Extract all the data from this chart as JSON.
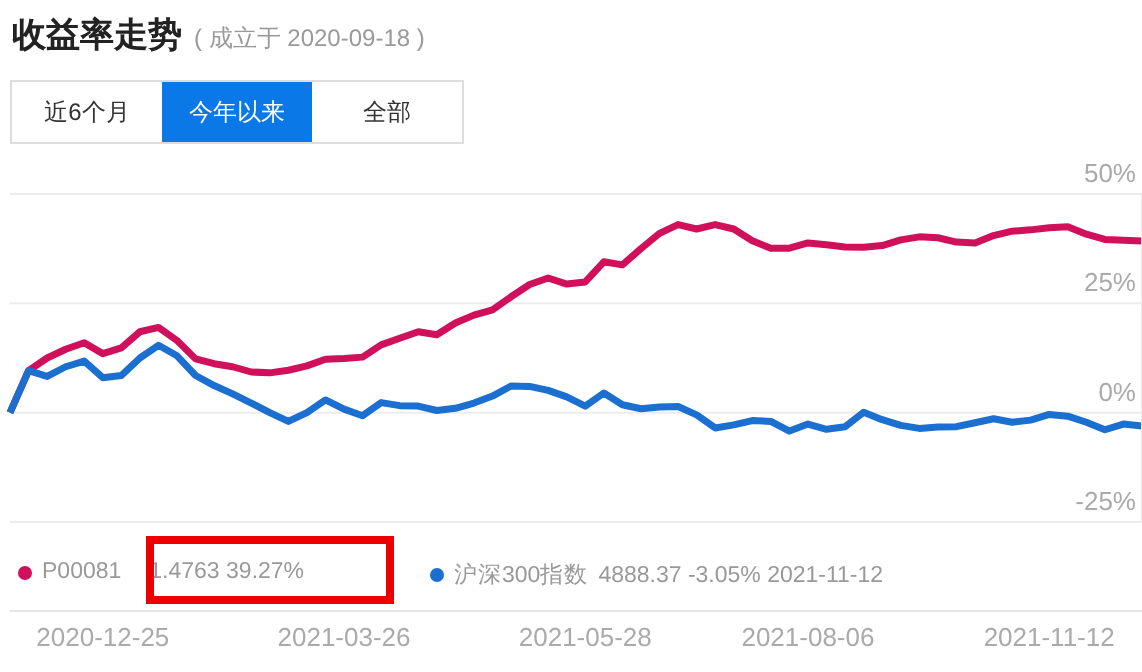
{
  "chart_data": {
    "type": "line",
    "title": "收益率走势",
    "subtitle": "( 成立于 2020-09-18 )",
    "annotations": [
      "近6个月",
      "今年以来",
      "全部",
      "1.4763 39.27%",
      "4888.37 -3.05% 2021-11-12"
    ],
    "categories": [
      null,
      null,
      null,
      null,
      null,
      "2020-12-25",
      null,
      null,
      null,
      null,
      null,
      null,
      null,
      null,
      null,
      null,
      null,
      null,
      "2021-03-26",
      null,
      null,
      null,
      null,
      null,
      null,
      null,
      null,
      null,
      null,
      null,
      null,
      "2021-05-28",
      null,
      null,
      null,
      null,
      null,
      null,
      null,
      null,
      null,
      null,
      null,
      "2021-08-06",
      null,
      null,
      null,
      null,
      null,
      null,
      null,
      null,
      null,
      null,
      null,
      null,
      "2021-11-12",
      null,
      null,
      null,
      null,
      null
    ],
    "series": [
      {
        "name": "P00081",
        "color": "#d0105a",
        "values": [
          0,
          9.6,
          12.5,
          14.5,
          16,
          13.5,
          14.8,
          18.5,
          19.5,
          16.5,
          12.3,
          11.2,
          10.5,
          9.3,
          9.1,
          9.7,
          10.7,
          12.2,
          12.4,
          12.7,
          15.5,
          17,
          18.5,
          17.8,
          20.5,
          22.3,
          23.5,
          26.5,
          29.3,
          30.8,
          29.4,
          29.9,
          34.5,
          33.8,
          37.5,
          41,
          43,
          42,
          43,
          42,
          39.3,
          37.6,
          37.6,
          38.8,
          38.4,
          37.9,
          37.8,
          38.2,
          39.5,
          40.2,
          40,
          39,
          38.8,
          40.5,
          41.5,
          41.8,
          42.3,
          42.5,
          40.8,
          39.6,
          39.4,
          39.27
        ]
      },
      {
        "name": "沪深300指数",
        "color": "#1a6fd0",
        "values": [
          0,
          9.6,
          8.3,
          10.5,
          11.8,
          8,
          8.5,
          12.5,
          15.4,
          13,
          8.5,
          6.2,
          4.3,
          2.2,
          0,
          -2,
          0,
          2.9,
          0.8,
          -0.7,
          2.3,
          1.6,
          1.5,
          0.5,
          1,
          2.2,
          3.8,
          6.1,
          6,
          5.1,
          3.6,
          1.5,
          4.5,
          1.8,
          0.9,
          1.3,
          1.4,
          -0.5,
          -3.5,
          -2.8,
          -1.8,
          -2,
          -4.2,
          -2.6,
          -3.8,
          -3.2,
          0.1,
          -1.6,
          -2.9,
          -3.6,
          -3.3,
          -3.2,
          -2.3,
          -1.4,
          -2.2,
          -1.7,
          -0.4,
          -0.8,
          -2.2,
          -3.9,
          -2.6,
          -3.05
        ]
      }
    ],
    "ylim": [
      -25,
      50
    ],
    "yticks": [
      {
        "value": -25,
        "label": "-25%"
      },
      {
        "value": 0,
        "label": "0%"
      },
      {
        "value": 25,
        "label": "25%"
      },
      {
        "value": 50,
        "label": "50%"
      }
    ],
    "grid": "y",
    "legend": "bottom",
    "marker": "none",
    "line_style": "solid"
  }
}
